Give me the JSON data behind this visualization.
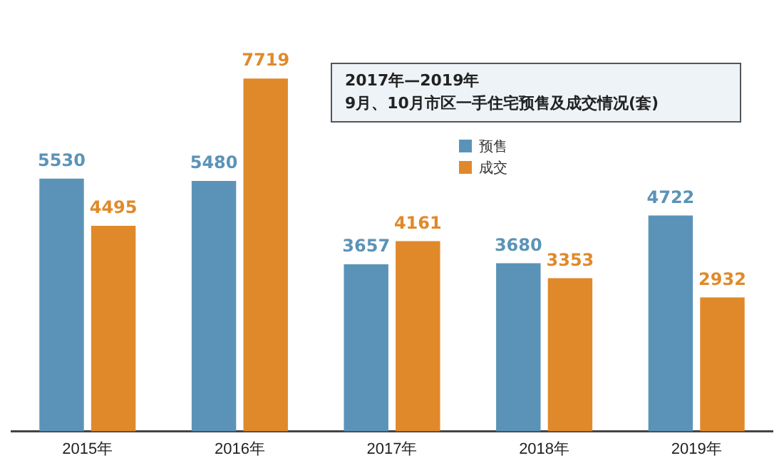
{
  "chart_data": {
    "type": "bar",
    "title": "2017年—2019年\n9月、10月市区一手住宅预售及成交情况(套)",
    "categories": [
      "2015年",
      "2016年",
      "2017年",
      "2018年",
      "2019年"
    ],
    "series": [
      {
        "name": "预售",
        "color": "#5b93b8",
        "values": [
          5530,
          5480,
          3657,
          3680,
          4722
        ]
      },
      {
        "name": "成交",
        "color": "#e0892a",
        "values": [
          4495,
          7719,
          4161,
          3353,
          2932
        ]
      }
    ],
    "data_labels": true,
    "legend": "top",
    "grid": false,
    "tick_labels": "x"
  }
}
